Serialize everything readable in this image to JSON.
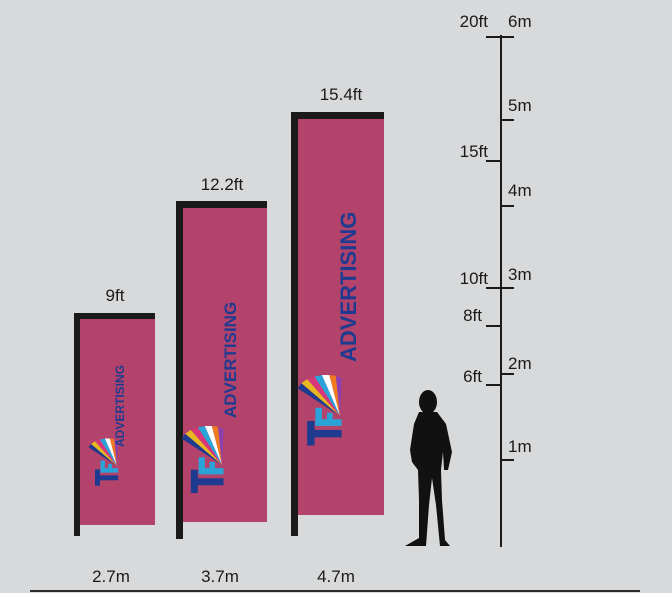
{
  "colors": {
    "background": "#d8d9da",
    "flag_fabric": "#b4436b",
    "pole": "#1a1a1a",
    "brand_text": "#1f3b8f",
    "silhouette": "#111111"
  },
  "flags": [
    {
      "height_ft": "9ft",
      "width_m": "2.7m",
      "brand": "ADVERTISING",
      "logo_icon": "tf-logo-icon"
    },
    {
      "height_ft": "12.2ft",
      "width_m": "3.7m",
      "brand": "ADVERTISING",
      "logo_icon": "tf-logo-icon"
    },
    {
      "height_ft": "15.4ft",
      "width_m": "4.7m",
      "brand": "ADVERTISING",
      "logo_icon": "tf-logo-icon"
    }
  ],
  "scale": {
    "ft_labels": [
      "20ft",
      "15ft",
      "10ft",
      "8ft",
      "6ft"
    ],
    "m_labels": [
      "6m",
      "5m",
      "4m",
      "3m",
      "2m",
      "1m"
    ]
  },
  "person_icon": "person-silhouette-icon"
}
